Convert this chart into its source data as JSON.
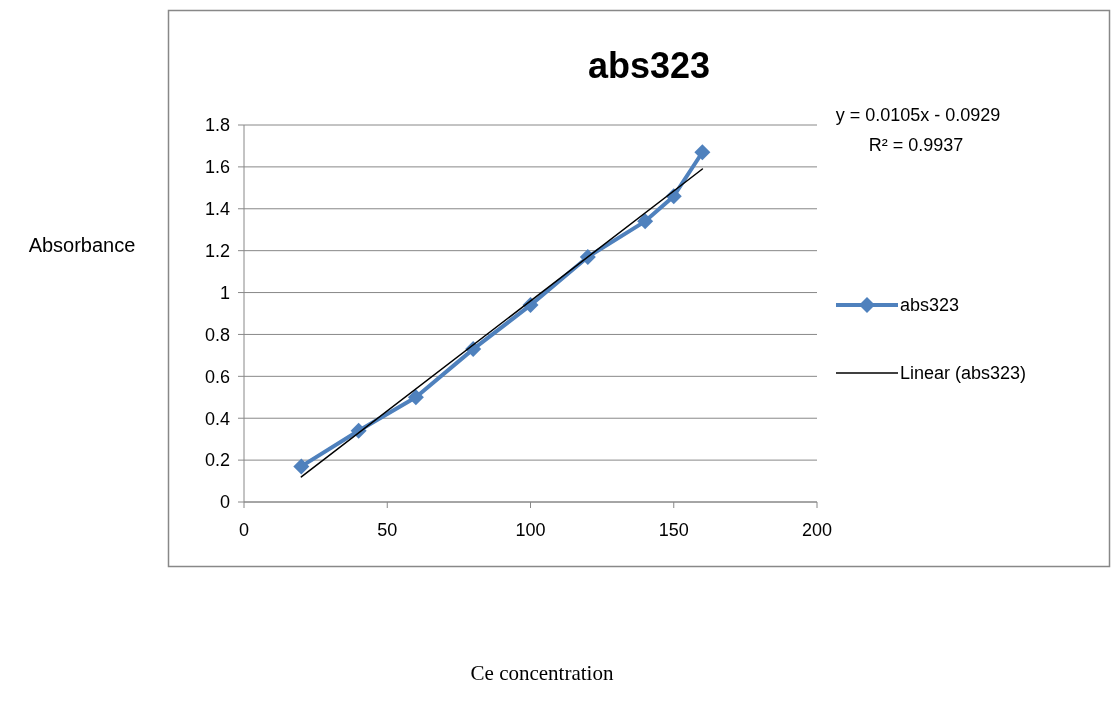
{
  "chart_data": {
    "type": "line",
    "title": "abs323",
    "ylabel": "Absorbance",
    "xlim": [
      0,
      200
    ],
    "xticks": [
      0,
      50,
      100,
      150,
      200
    ],
    "ylim": [
      0,
      1.8
    ],
    "yticks": [
      0,
      0.2,
      0.4,
      0.6,
      0.8,
      1,
      1.2,
      1.4,
      1.6,
      1.8
    ],
    "grid": "y",
    "legend": "right",
    "marker": "diamond",
    "annotations": [
      "y = 0.0105x - 0.0929",
      "R² = 0.9937",
      "Ce concentration"
    ],
    "series": [
      {
        "name": "abs323",
        "color": "#4f81bd",
        "x": [
          20,
          40,
          60,
          80,
          100,
          120,
          140,
          150,
          160
        ],
        "values": [
          0.17,
          0.34,
          0.5,
          0.73,
          0.94,
          1.17,
          1.34,
          1.46,
          1.67
        ]
      },
      {
        "name": "Linear (abs323)",
        "color": "#000000",
        "type": "line",
        "marker": "none",
        "x": [
          20,
          160
        ],
        "values": [
          0.12,
          1.59
        ]
      }
    ]
  }
}
